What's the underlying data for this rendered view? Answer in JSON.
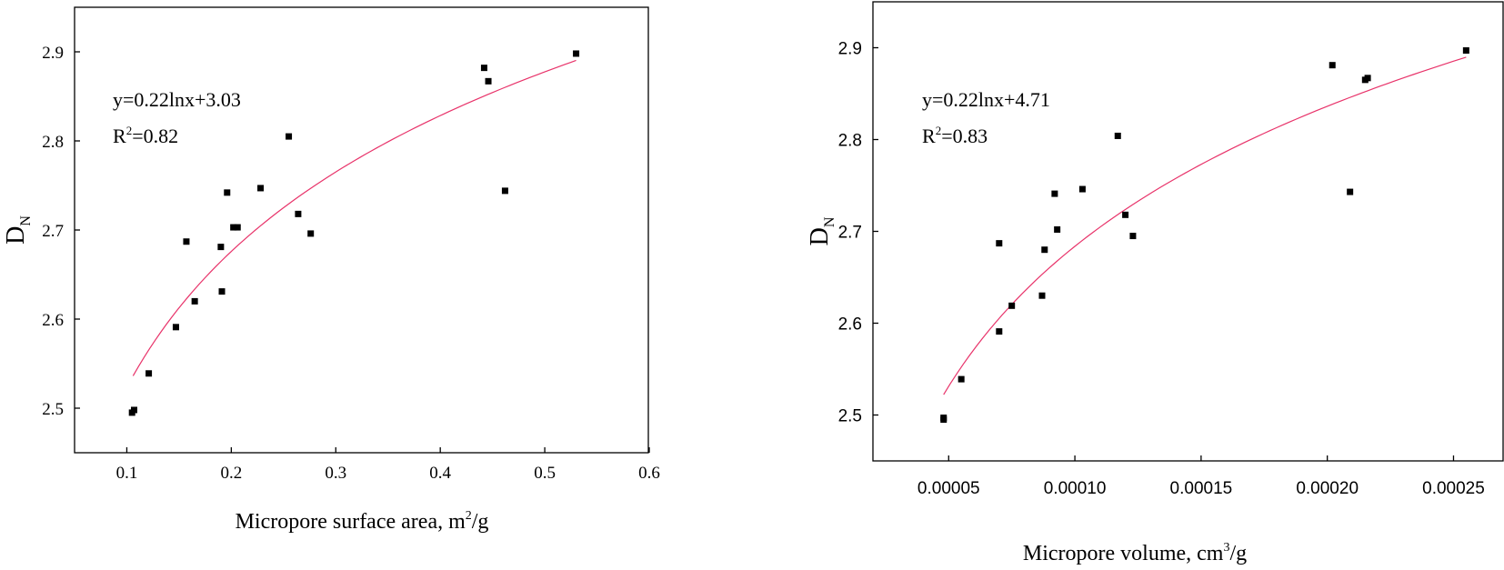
{
  "chart_data": [
    {
      "type": "scatter",
      "xlabel": "Micropore surface area, m",
      "xlabel_sup": "2",
      "xlabel_tail": "/g",
      "ylabel": "D",
      "ylabel_sub": "N",
      "xlim": [
        0.05,
        0.6
      ],
      "ylim": [
        2.45,
        2.95
      ],
      "xticks": [
        "0.1",
        "0.2",
        "0.3",
        "0.4",
        "0.5",
        "0.6"
      ],
      "yticks": [
        "2.5",
        "2.6",
        "2.7",
        "2.8",
        "2.9"
      ],
      "equation": "y=0.22lnx+3.03",
      "r2_prefix": "R",
      "r2_sup": "2",
      "r2_value": "=0.82",
      "fit": {
        "a": 0.22,
        "b": 3.03,
        "x_start": 0.106,
        "x_end": 0.53
      },
      "points": [
        {
          "x": 0.105,
          "y": 2.495
        },
        {
          "x": 0.107,
          "y": 2.498
        },
        {
          "x": 0.121,
          "y": 2.539
        },
        {
          "x": 0.147,
          "y": 2.591
        },
        {
          "x": 0.157,
          "y": 2.687
        },
        {
          "x": 0.165,
          "y": 2.62
        },
        {
          "x": 0.19,
          "y": 2.681
        },
        {
          "x": 0.191,
          "y": 2.631
        },
        {
          "x": 0.196,
          "y": 2.742
        },
        {
          "x": 0.202,
          "y": 2.703
        },
        {
          "x": 0.206,
          "y": 2.703
        },
        {
          "x": 0.228,
          "y": 2.747
        },
        {
          "x": 0.255,
          "y": 2.805
        },
        {
          "x": 0.264,
          "y": 2.718
        },
        {
          "x": 0.276,
          "y": 2.696
        },
        {
          "x": 0.442,
          "y": 2.882
        },
        {
          "x": 0.446,
          "y": 2.867
        },
        {
          "x": 0.462,
          "y": 2.744
        },
        {
          "x": 0.53,
          "y": 2.898
        }
      ]
    },
    {
      "type": "scatter",
      "xlabel": "Micropore volume, cm",
      "xlabel_sup": "3",
      "xlabel_tail": "/g",
      "ylabel": "D",
      "ylabel_sub": "N",
      "xlim": [
        2e-05,
        0.00027
      ],
      "ylim": [
        2.45,
        2.95
      ],
      "xticks": [
        "0.00005",
        "0.00010",
        "0.00015",
        "0.00020",
        "0.00025"
      ],
      "xtick_values": [
        5e-05,
        0.0001,
        0.00015,
        0.0002,
        0.00025
      ],
      "yticks": [
        "2.5",
        "2.6",
        "2.7",
        "2.8",
        "2.9"
      ],
      "equation": "y=0.22lnx+4.71",
      "r2_prefix": "R",
      "r2_sup": "2",
      "r2_value": "=0.83",
      "fit": {
        "a": 0.22,
        "b": 4.71,
        "x_start": 4.8e-05,
        "x_end": 0.000255
      },
      "points": [
        {
          "x": 4.8e-05,
          "y": 2.495
        },
        {
          "x": 4.8e-05,
          "y": 2.497
        },
        {
          "x": 5.5e-05,
          "y": 2.539
        },
        {
          "x": 7e-05,
          "y": 2.591
        },
        {
          "x": 7e-05,
          "y": 2.687
        },
        {
          "x": 7.5e-05,
          "y": 2.619
        },
        {
          "x": 8.7e-05,
          "y": 2.63
        },
        {
          "x": 8.8e-05,
          "y": 2.68
        },
        {
          "x": 9.2e-05,
          "y": 2.741
        },
        {
          "x": 9.3e-05,
          "y": 2.702
        },
        {
          "x": 0.000103,
          "y": 2.746
        },
        {
          "x": 0.000117,
          "y": 2.804
        },
        {
          "x": 0.00012,
          "y": 2.718
        },
        {
          "x": 0.000123,
          "y": 2.695
        },
        {
          "x": 0.000202,
          "y": 2.881
        },
        {
          "x": 0.000209,
          "y": 2.743
        },
        {
          "x": 0.000215,
          "y": 2.865
        },
        {
          "x": 0.000216,
          "y": 2.867
        },
        {
          "x": 0.000255,
          "y": 2.897
        }
      ]
    }
  ]
}
